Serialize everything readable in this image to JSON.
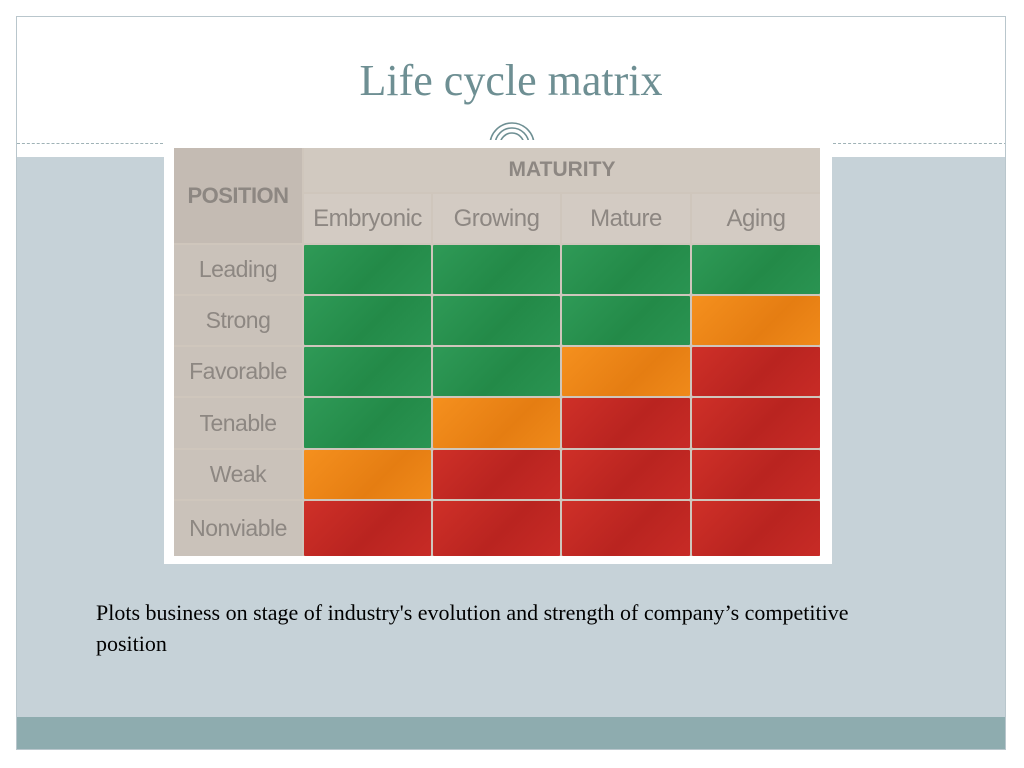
{
  "slide": {
    "title": "Life cycle matrix",
    "caption": "Plots business on stage of industry's evolution and strength of company’s competitive position"
  },
  "matrix": {
    "row_header": "POSITION",
    "column_header": "MATURITY",
    "stages": [
      "Embryonic",
      "Growing",
      "Mature",
      "Aging"
    ],
    "positions": [
      "Leading",
      "Strong",
      "Favorable",
      "Tenable",
      "Weak",
      "Nonviable"
    ],
    "cells": [
      [
        "green",
        "green",
        "green",
        "green"
      ],
      [
        "green",
        "green",
        "green",
        "orange"
      ],
      [
        "green",
        "green",
        "orange",
        "red"
      ],
      [
        "green",
        "orange",
        "red",
        "red"
      ],
      [
        "orange",
        "red",
        "red",
        "red"
      ],
      [
        "red",
        "red",
        "red",
        "red"
      ]
    ]
  },
  "colors": {
    "title": "#6e8f93",
    "body_background": "#c6d2d8",
    "footer_bar": "#8eacaf",
    "green": "#2a9150",
    "orange": "#ee8718",
    "red": "#c52a25"
  }
}
